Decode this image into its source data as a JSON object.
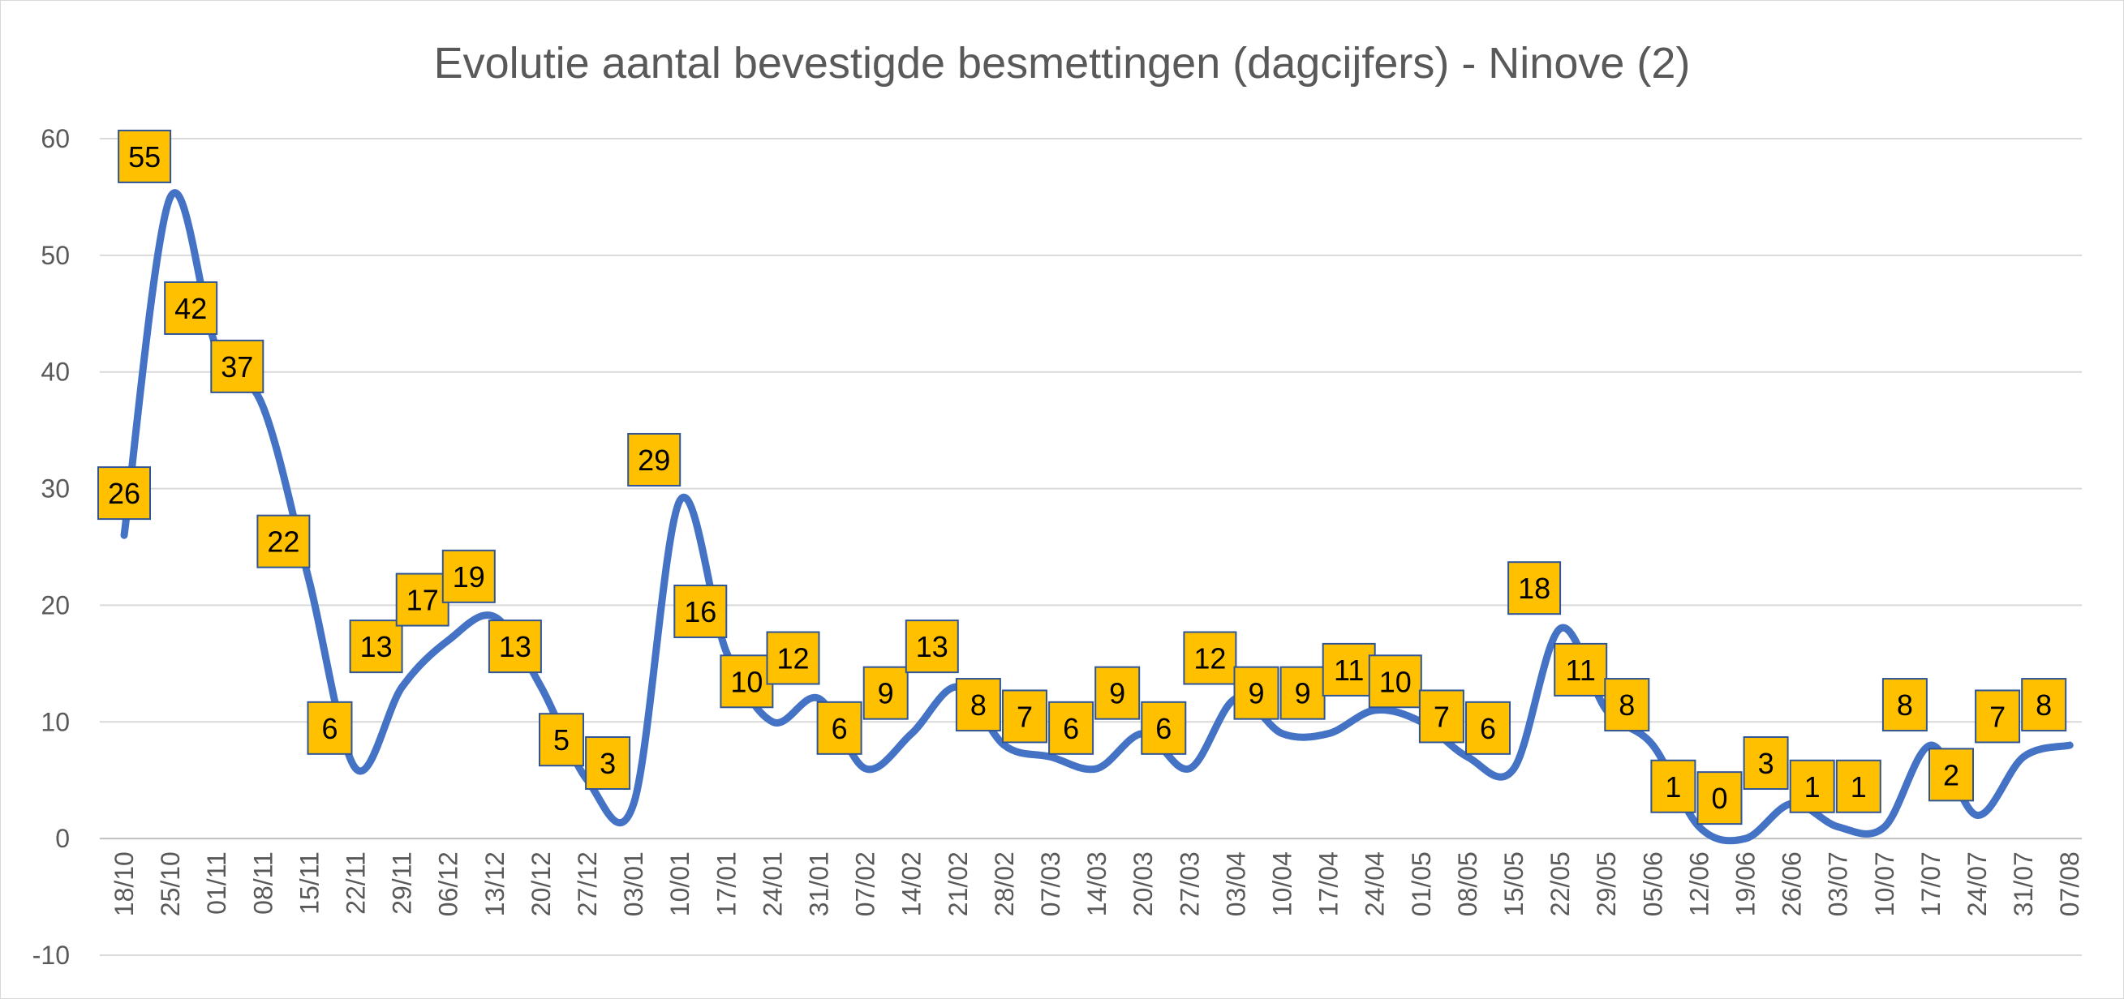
{
  "chart_data": {
    "type": "line",
    "title": "Evolutie aantal bevestigde besmettingen (dagcijfers) - Ninove (2)",
    "xlabel": "",
    "ylabel": "",
    "ylim": [
      -10,
      60
    ],
    "yticks": [
      -10,
      0,
      10,
      20,
      30,
      40,
      50,
      60
    ],
    "grid": true,
    "smooth": true,
    "categories": [
      "18/10",
      "25/10",
      "01/11",
      "08/11",
      "15/11",
      "22/11",
      "29/11",
      "06/12",
      "13/12",
      "20/12",
      "27/12",
      "03/01",
      "10/01",
      "17/01",
      "24/01",
      "31/01",
      "07/02",
      "14/02",
      "21/02",
      "28/02",
      "07/03",
      "14/03",
      "20/03",
      "27/03",
      "03/04",
      "10/04",
      "17/04",
      "24/04",
      "01/05",
      "08/05",
      "15/05",
      "22/05",
      "29/05",
      "05/06",
      "12/06",
      "19/06",
      "26/06",
      "03/07",
      "10/07",
      "17/07",
      "24/07",
      "31/07",
      "07/08"
    ],
    "series": [
      {
        "name": "Ninove",
        "color": "#4472c4",
        "label_fill": "#ffc000",
        "label_border": "#2f5597",
        "values": [
          26,
          55,
          42,
          37,
          22,
          6,
          13,
          17,
          19,
          13,
          5,
          3,
          29,
          16,
          10,
          12,
          6,
          9,
          13,
          8,
          7,
          6,
          9,
          6,
          12,
          9,
          9,
          11,
          10,
          7,
          6,
          18,
          11,
          8,
          1,
          0,
          3,
          1,
          1,
          8,
          2,
          7,
          8
        ]
      }
    ]
  }
}
